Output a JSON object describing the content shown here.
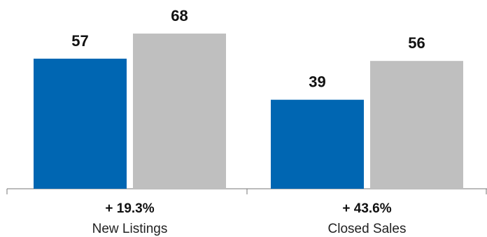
{
  "chart_data": {
    "type": "bar",
    "title": "",
    "xlabel": "",
    "ylabel": "",
    "categories": [
      "New Listings",
      "Closed Sales"
    ],
    "series": [
      {
        "values": [
          57,
          39
        ],
        "color": "#0066b2"
      },
      {
        "values": [
          68,
          56
        ],
        "color": "#bfbfbf"
      }
    ],
    "changes": [
      "+ 19.3%",
      "+ 43.6%"
    ],
    "ylim": [
      0,
      68
    ],
    "grid": false,
    "legend": "none"
  }
}
